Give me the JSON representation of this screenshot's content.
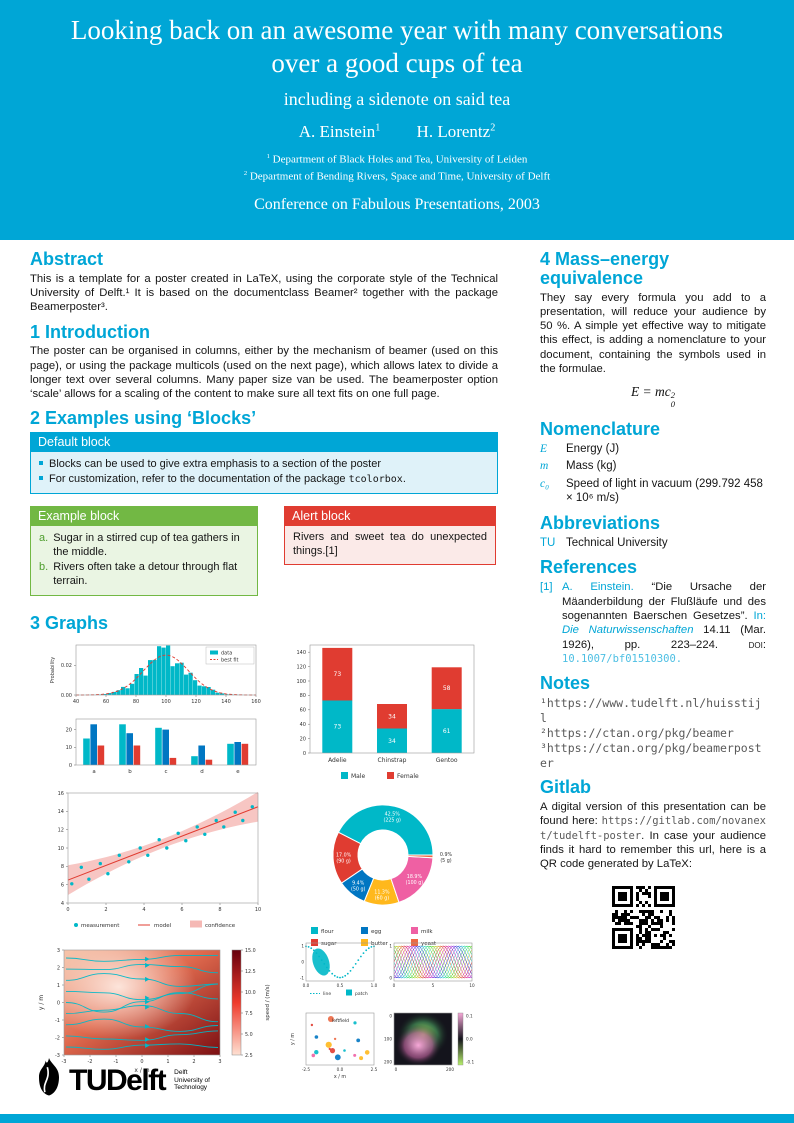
{
  "colors": {
    "primary": "#00A6D6",
    "teal": "#00B8C8",
    "red": "#E03C31",
    "blue": "#0076C2",
    "yellow": "#FFB81C",
    "magenta": "#EF60A3",
    "orange": "#EC6842",
    "green": "#72B844",
    "light_cyan": "#DFF2F9",
    "light_green": "#EAF5E3",
    "light_red": "#FBEAE8"
  },
  "header": {
    "title": "Looking back on an awesome year with many conversations over a good cups of tea",
    "subtitle": "including a sidenote on said tea",
    "authors": [
      {
        "name": "A. Einstein",
        "mark": "1"
      },
      {
        "name": "H. Lorentz",
        "mark": "2"
      }
    ],
    "affiliations": [
      {
        "mark": "1",
        "text": "Department of Black Holes and Tea, University of Leiden"
      },
      {
        "mark": "2",
        "text": "Department of Bending Rivers, Space and Time, University of Delft"
      }
    ],
    "conference": "Conference on Fabulous Presentations, 2003"
  },
  "left": {
    "abstract": {
      "heading": "Abstract",
      "text": "This is a template for a poster created in LaTeX, using the corporate style of the Technical University of Delft.¹ It is based on the documentclass Beamer² together with the package Beamerposter³."
    },
    "introduction": {
      "heading": "1 Introduction",
      "text": "The poster can be organised in columns, either by the mechanism of beamer (used on this page), or using the package multicols (used on the next page), which allows latex to divide a longer text over several columns. Many paper size van be used. The beamerposter option ‘scale’ allows for a scaling of the content to make sure all text fits on one full page."
    },
    "examples": {
      "heading": "2 Examples using ‘Blocks’",
      "default_block": {
        "title": "Default block",
        "item1": "Blocks can be used to give extra emphasis to a section of the poster",
        "item2_before": "For customization, refer to the documentation of the package ",
        "item2_code": "tcolorbox",
        "item2_after": "."
      },
      "example_block": {
        "title": "Example block",
        "items": [
          {
            "label": "a.",
            "text": "Sugar in a stirred cup of tea gathers in the middle."
          },
          {
            "label": "b.",
            "text": "Rivers often take a detour through flat terrain."
          }
        ]
      },
      "alert_block": {
        "title": "Alert block",
        "text": "Rivers and sweet tea do unexpected things.[1]"
      }
    },
    "graphs": {
      "heading": "3 Graphs"
    }
  },
  "right": {
    "mass_energy": {
      "heading": "4 Mass–energy equivalence",
      "text": "They say every formula you add to a presentation, will reduce your audience by 50 %. A simple yet effective way to mitigate this effect, is adding a nomenclature to your document, containing the symbols used in the formulae.",
      "formula": {
        "base": "E = mc",
        "sup": "2",
        "sub": "0"
      }
    },
    "nomenclature": {
      "heading": "Nomenclature",
      "entries": [
        {
          "symbol": "E",
          "text": "Energy (J)"
        },
        {
          "symbol": "m",
          "text": "Mass (kg)"
        },
        {
          "symbol": "c₀",
          "text": "Speed of light in vacuum (299.792 458 × 10⁶ m/s)"
        }
      ]
    },
    "abbreviations": {
      "heading": "Abbreviations",
      "entries": [
        {
          "abbr": "TU",
          "text": "Technical University"
        }
      ]
    },
    "references": {
      "heading": "References",
      "items": [
        {
          "label": "[1]",
          "authors": "A. Einstein.",
          "title": "“Die Ursache der Mäanderbildung der Flußläufe und des sogenannten Baerschen Gesetzes”.",
          "in_label": "In:",
          "journal": "Die Naturwissenschaften",
          "details": "14.11 (Mar. 1926), pp. 223–224.",
          "doi_label": "doi:",
          "doi": "10.1007/bf01510300."
        }
      ]
    },
    "notes": {
      "heading": "Notes",
      "items": [
        "¹https://www.tudelft.nl/huisstijl",
        "²https://ctan.org/pkg/beamer",
        "³https://ctan.org/pkg/beamerposter"
      ]
    },
    "gitlab": {
      "heading": "Gitlab",
      "text_before": "A digital version of this presentation can be found here: ",
      "url": "https://gitlab.com/novanext/tudelft-poster",
      "text_after": ". In case your audience finds it hard to remember this url, here is a QR code generated by LaTeX:"
    }
  },
  "footer_logo": {
    "tu": "TU",
    "delft": "Delft",
    "affil_lines": [
      "Delft",
      "University of",
      "Technology"
    ]
  },
  "chart_data": [
    {
      "id": "histogram",
      "type": "histogram",
      "ylabel": "Probability",
      "xlim": [
        40,
        160
      ],
      "x_ticks": [
        40,
        60,
        80,
        100,
        120,
        140,
        160
      ],
      "y_ticks": [
        0.0,
        0.02
      ],
      "mean": 100,
      "std": 15,
      "peak": 0.027,
      "bin_width": 3,
      "bar_color": "#00B8C8",
      "fit_color": "#E03C31",
      "legend": [
        "data",
        "best fit"
      ]
    },
    {
      "id": "grouped-bars",
      "type": "bar-grouped",
      "categories": [
        "a",
        "b",
        "c",
        "d",
        "e"
      ],
      "series": [
        {
          "color": "#00B8C8",
          "values": [
            15,
            23,
            21,
            5,
            12
          ]
        },
        {
          "color": "#0076C2",
          "values": [
            23,
            18,
            20,
            11,
            13
          ]
        },
        {
          "color": "#E03C31",
          "values": [
            11,
            11,
            4,
            3,
            12
          ]
        }
      ],
      "y_ticks": [
        0,
        10,
        20
      ],
      "ylim": [
        0,
        26
      ]
    },
    {
      "id": "penguins",
      "type": "bar-stacked",
      "categories": [
        "Adelie",
        "Chinstrap",
        "Gentoo"
      ],
      "series": [
        {
          "name": "Male",
          "color": "#00B8C8",
          "values": [
            73,
            34,
            61
          ]
        },
        {
          "name": "Female",
          "color": "#E03C31",
          "values": [
            73,
            34,
            58
          ]
        }
      ],
      "y_ticks": [
        0,
        20,
        40,
        60,
        80,
        100,
        120,
        140
      ],
      "ylim": [
        0,
        150
      ]
    },
    {
      "id": "regression",
      "type": "scatter-regression",
      "xlim": [
        0,
        10
      ],
      "ylim": [
        4,
        16
      ],
      "x_ticks": [
        0,
        2,
        4,
        6,
        8,
        10
      ],
      "y_ticks": [
        4,
        6,
        8,
        10,
        12,
        14,
        16
      ],
      "points": [
        [
          0.2,
          6.1
        ],
        [
          0.7,
          7.9
        ],
        [
          1.1,
          6.6
        ],
        [
          1.7,
          8.3
        ],
        [
          2.1,
          7.2
        ],
        [
          2.7,
          9.2
        ],
        [
          3.2,
          8.5
        ],
        [
          3.8,
          10.0
        ],
        [
          4.2,
          9.2
        ],
        [
          4.8,
          10.9
        ],
        [
          5.2,
          10.0
        ],
        [
          5.8,
          11.6
        ],
        [
          6.2,
          10.8
        ],
        [
          6.8,
          12.3
        ],
        [
          7.2,
          11.5
        ],
        [
          7.8,
          13.0
        ],
        [
          8.2,
          12.3
        ],
        [
          8.8,
          13.9
        ],
        [
          9.2,
          13.0
        ],
        [
          9.7,
          14.5
        ]
      ],
      "line": {
        "intercept": 6.5,
        "slope": 0.8
      },
      "band": {
        "base": 0.5,
        "curve": 0.045
      },
      "colors": {
        "points": "#00B8C8",
        "line": "#E03C31",
        "band": "#F5B8B4"
      },
      "legend": [
        "measurement",
        "model",
        "confidence"
      ]
    },
    {
      "id": "donut",
      "type": "donut",
      "slices": [
        {
          "label": "flour",
          "pct": 42.5,
          "grams": 225,
          "color": "#00B8C8"
        },
        {
          "label": "sugar",
          "pct": 17.0,
          "grams": 90,
          "color": "#E03C31"
        },
        {
          "label": "egg",
          "pct": 9.4,
          "grams": 50,
          "color": "#0076C2"
        },
        {
          "label": "butter",
          "pct": 11.3,
          "grams": 60,
          "color": "#FFB81C"
        },
        {
          "label": "milk",
          "pct": 18.9,
          "grams": 100,
          "color": "#EF60A3"
        },
        {
          "label": "yeast",
          "pct": 0.9,
          "grams": 5,
          "color": "#EC6842"
        }
      ],
      "legend_rows": [
        [
          0,
          2,
          4
        ],
        [
          1,
          3,
          5
        ]
      ]
    },
    {
      "id": "stream",
      "type": "stream",
      "xlabel": "x / m",
      "ylabel": "y / m",
      "x_ticks": [
        -3,
        -2,
        -1,
        0,
        1,
        2,
        3
      ],
      "y_ticks": [
        -3,
        -2,
        -1,
        0,
        1,
        2,
        3
      ],
      "line_color": "#00B8C8",
      "colorbar": {
        "label": "speed / (m/s)",
        "ticks": [
          2.5,
          5.0,
          7.5,
          10.0,
          12.5,
          15.0
        ]
      }
    },
    {
      "id": "multiples",
      "type": "multiples",
      "line_patch": {
        "x_ticks": [
          "0.0",
          "0.5",
          "1.0"
        ],
        "y_ticks": [
          "1",
          "0",
          "-1"
        ],
        "legend": [
          "line",
          "patch"
        ],
        "color": "#00B8C8"
      },
      "mesh": {
        "x_ticks": [
          "0",
          "5",
          "10"
        ],
        "y_ticks": [
          "1",
          "0"
        ]
      },
      "field_scatter": {
        "xlabel": "x / m",
        "ylabel": "y / m",
        "x_ticks": [
          "-2.5",
          "0.0",
          "2.5"
        ],
        "annotation": "leftfield"
      },
      "image": {
        "x_ticks": [
          "0",
          "200"
        ],
        "y_ticks": [
          "0",
          "100",
          "200"
        ],
        "colorbar_ticks": [
          "0.1",
          "0.0",
          "-0.1"
        ]
      }
    }
  ]
}
